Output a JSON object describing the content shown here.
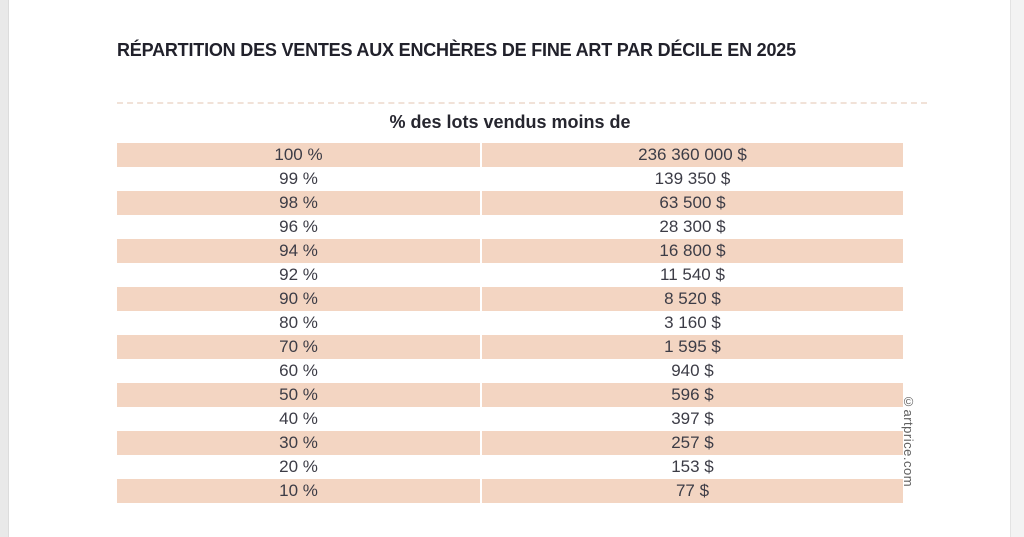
{
  "page": {
    "title": "RÉPARTITION DES VENTES AUX ENCHÈRES DE FINE ART PAR DÉCILE EN 2025",
    "subtitle": "% des lots vendus moins de",
    "watermark": "©artprice.com"
  },
  "colors": {
    "row_highlight": "#f3d5c2",
    "row_text": "#3c3c46",
    "title_text": "#21212b",
    "page_background": "#ffffff",
    "left_margin": "#e9e9e9",
    "right_margin": "#f3f3f3"
  },
  "chart_data": {
    "type": "table",
    "title": "RÉPARTITION DES VENTES AUX ENCHÈRES DE FINE ART PAR DÉCILE EN 2025",
    "header": "% des lots vendus moins de",
    "rows": [
      {
        "percent": "100 %",
        "value": "236 360 000 $"
      },
      {
        "percent": "99 %",
        "value": "139 350 $"
      },
      {
        "percent": "98 %",
        "value": "63 500 $"
      },
      {
        "percent": "96 %",
        "value": "28 300 $"
      },
      {
        "percent": "94 %",
        "value": "16 800 $"
      },
      {
        "percent": "92 %",
        "value": "11 540 $"
      },
      {
        "percent": "90 %",
        "value": "8 520 $"
      },
      {
        "percent": "80 %",
        "value": "3 160 $"
      },
      {
        "percent": "70 %",
        "value": "1 595 $"
      },
      {
        "percent": "60 %",
        "value": "940 $"
      },
      {
        "percent": "50 %",
        "value": "596 $"
      },
      {
        "percent": "40 %",
        "value": "397 $"
      },
      {
        "percent": "30 %",
        "value": "257 $"
      },
      {
        "percent": "20 %",
        "value": "153 $"
      },
      {
        "percent": "10 %",
        "value": "77 $"
      }
    ],
    "layout": {
      "highlighted_rows": "odd (1st, 3rd, ...)",
      "columns": 2,
      "value_alignment": "center"
    }
  }
}
